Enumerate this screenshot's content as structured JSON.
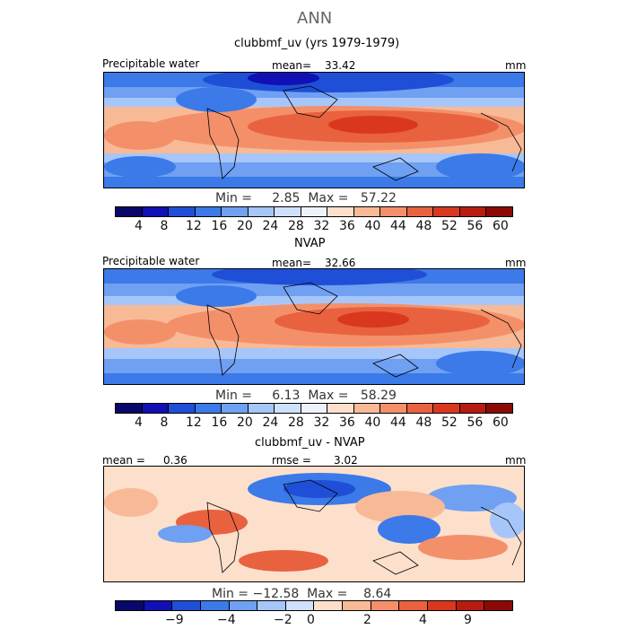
{
  "figure": {
    "title": "ANN"
  },
  "palette": {
    "abs": [
      "#08086b",
      "#1010b4",
      "#1f4fd6",
      "#3b7ae8",
      "#6fa0f2",
      "#a6c6fa",
      "#cfe0fb",
      "#eef3fb",
      "#fce0cc",
      "#f8b996",
      "#f3906a",
      "#e9623f",
      "#d9381f",
      "#b81c10",
      "#8c0a06"
    ],
    "diff": [
      "#08086b",
      "#1010b4",
      "#1f4fd6",
      "#3b7ae8",
      "#6fa0f2",
      "#a6c6fa",
      "#cfe0fb",
      "#fce0cc",
      "#f8b996",
      "#f3906a",
      "#e9623f",
      "#d9381f",
      "#b81c10",
      "#8c0a06"
    ]
  },
  "panels": [
    {
      "title": "clubbmf_uv (yrs 1979-1979)",
      "left_label": "Precipitable water",
      "mean_label": "mean=",
      "mean_value": "33.42",
      "units": "mm",
      "stats": "Min =     2.85  Max =   57.22",
      "ticks": [
        "4",
        "8",
        "12",
        "16",
        "20",
        "24",
        "28",
        "32",
        "36",
        "40",
        "44",
        "48",
        "52",
        "56",
        "60"
      ]
    },
    {
      "title": "NVAP",
      "left_label": "Precipitable water",
      "mean_label": "mean=",
      "mean_value": "32.66",
      "units": "mm",
      "stats": "Min =     6.13  Max =   58.29",
      "ticks": [
        "4",
        "8",
        "12",
        "16",
        "20",
        "24",
        "28",
        "32",
        "36",
        "40",
        "44",
        "48",
        "52",
        "56",
        "60"
      ]
    },
    {
      "title": "clubbmf_uv - NVAP",
      "left_label": "mean =",
      "mean_value": "0.36",
      "mid_label": "rmse =",
      "rmse_value": "3.02",
      "units": "mm",
      "stats": "Min = −12.58  Max =    8.64",
      "ticks": [
        "−9",
        "−4",
        "−2",
        "0",
        "2",
        "4",
        "9"
      ]
    }
  ]
}
